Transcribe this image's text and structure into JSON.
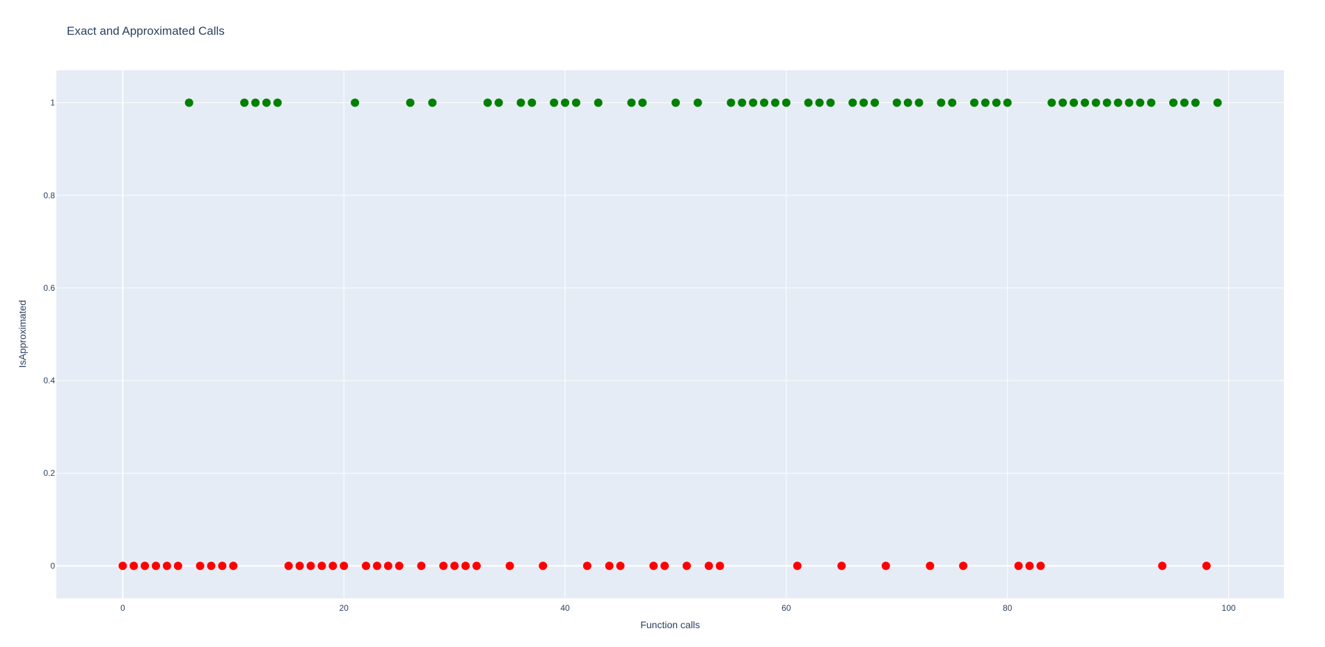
{
  "chart_data": {
    "type": "scatter",
    "title": "Exact and Approximated Calls",
    "xlabel": "Function calls",
    "ylabel": "IsApproximated",
    "xlim": [
      -6,
      105
    ],
    "ylim": [
      -0.07,
      1.07
    ],
    "xticks": [
      0,
      20,
      40,
      60,
      80,
      100
    ],
    "yticks": [
      0,
      0.2,
      0.4,
      0.6,
      0.8,
      1
    ],
    "grid": true,
    "legend": "none",
    "colors": {
      "approximated": "#008000",
      "exact": "#ff0000",
      "plot_background": "#e5ecf6",
      "text": "#2a3f5f"
    },
    "series": [
      {
        "color": "#008000",
        "y": 1,
        "x": [
          6,
          11,
          12,
          13,
          14,
          21,
          26,
          28,
          33,
          34,
          36,
          37,
          39,
          40,
          41,
          43,
          46,
          47,
          50,
          52,
          55,
          56,
          57,
          58,
          59,
          60,
          62,
          63,
          64,
          66,
          67,
          68,
          70,
          71,
          72,
          74,
          75,
          77,
          78,
          79,
          80,
          84,
          85,
          86,
          87,
          88,
          89,
          90,
          91,
          92,
          93,
          95,
          96,
          97,
          99
        ]
      },
      {
        "color": "#ff0000",
        "y": 0,
        "x": [
          0,
          1,
          2,
          3,
          4,
          5,
          7,
          8,
          9,
          10,
          15,
          16,
          17,
          18,
          19,
          20,
          22,
          23,
          24,
          25,
          27,
          29,
          30,
          31,
          32,
          35,
          38,
          42,
          44,
          45,
          48,
          49,
          51,
          53,
          54,
          61,
          65,
          69,
          73,
          76,
          81,
          82,
          83,
          94,
          98
        ]
      }
    ]
  }
}
